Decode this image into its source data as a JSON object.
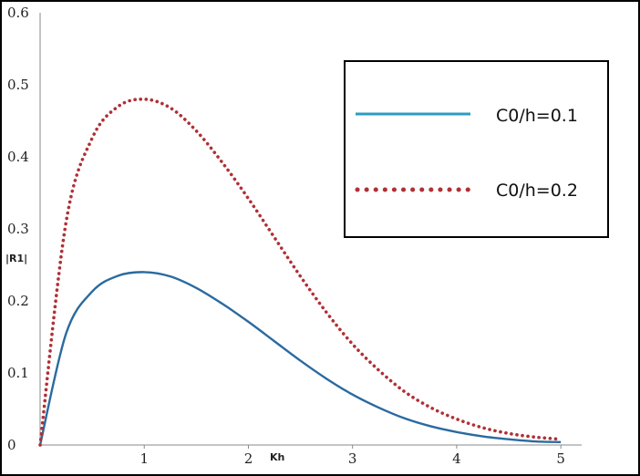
{
  "chart_data": {
    "type": "line",
    "title": "",
    "xlabel": "Kh",
    "ylabel": "|R1|",
    "xlim": [
      0,
      5.2
    ],
    "ylim": [
      0,
      0.6
    ],
    "x_ticks": [
      1,
      2,
      3,
      4,
      5
    ],
    "y_ticks": [
      0,
      0.1,
      0.2,
      0.3,
      0.4,
      0.5,
      0.6
    ],
    "x_tick_labels": [
      "1",
      "2",
      "3",
      "4",
      "5"
    ],
    "y_tick_labels": [
      "0",
      "0.1",
      "0.2",
      "0.3",
      "0.4",
      "0.5",
      "0.6"
    ],
    "grid": false,
    "legend_position": "top-right",
    "x": [
      0,
      0.25,
      0.5,
      0.75,
      1.0,
      1.25,
      1.5,
      1.75,
      2.0,
      2.25,
      2.5,
      2.75,
      3.0,
      3.25,
      3.5,
      3.75,
      4.0,
      4.25,
      4.5,
      4.75,
      5.0
    ],
    "series": [
      {
        "name": "C0/h=0.1",
        "color": "#2a9cc0",
        "style": "solid",
        "values": [
          0,
          0.155,
          0.213,
          0.235,
          0.24,
          0.234,
          0.218,
          0.196,
          0.171,
          0.144,
          0.117,
          0.092,
          0.07,
          0.052,
          0.037,
          0.026,
          0.018,
          0.012,
          0.008,
          0.005,
          0.004
        ]
      },
      {
        "name": "C0/h=0.2",
        "color": "#b03035",
        "style": "dotted",
        "values": [
          0,
          0.31,
          0.426,
          0.47,
          0.48,
          0.468,
          0.436,
          0.392,
          0.342,
          0.288,
          0.234,
          0.184,
          0.14,
          0.104,
          0.074,
          0.052,
          0.036,
          0.024,
          0.016,
          0.011,
          0.008
        ]
      }
    ]
  }
}
